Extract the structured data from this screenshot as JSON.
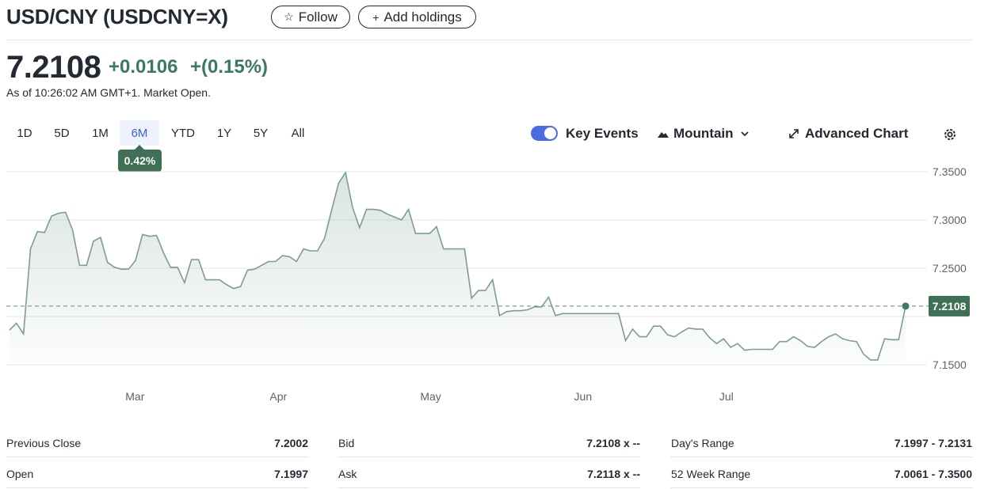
{
  "header": {
    "title": "USD/CNY (USDCNY=X)",
    "follow_label": "Follow",
    "add_holdings_label": "Add holdings"
  },
  "quote": {
    "price": "7.2108",
    "change": "+0.0106",
    "change_percent": "+(0.15%)",
    "as_of": "As of 10:26:02 AM GMT+1. Market Open."
  },
  "ranges": [
    {
      "label": "1D"
    },
    {
      "label": "5D"
    },
    {
      "label": "1M"
    },
    {
      "label": "6M",
      "active": true
    },
    {
      "label": "YTD"
    },
    {
      "label": "1Y"
    },
    {
      "label": "5Y"
    },
    {
      "label": "All"
    }
  ],
  "range_tooltip": "0.42%",
  "toolbar": {
    "key_events_label": "Key Events",
    "key_events_on": true,
    "chart_type_label": "Mountain",
    "advanced_chart_label": "Advanced Chart"
  },
  "colors": {
    "accent_green": "#3c7a5e",
    "line": "#7aa08a",
    "toggle": "#4d6be0",
    "active_range": "#3c5fd6"
  },
  "chart_data": {
    "type": "area",
    "y_ticks": [
      "7.3500",
      "7.3000",
      "7.2500",
      "7.1500"
    ],
    "ylim": [
      7.15,
      7.35
    ],
    "x_ticks": [
      {
        "label": "Mar",
        "x": 0.14
      },
      {
        "label": "Apr",
        "x": 0.3
      },
      {
        "label": "May",
        "x": 0.47
      },
      {
        "label": "Jun",
        "x": 0.64
      },
      {
        "label": "Jul",
        "x": 0.8
      }
    ],
    "x_range": [
      0,
      1
    ],
    "current_value": 7.2108,
    "current_label": "7.2108",
    "grid": true,
    "values": [
      7.186,
      7.193,
      7.182,
      7.27,
      7.288,
      7.287,
      7.304,
      7.307,
      7.308,
      7.29,
      7.253,
      7.253,
      7.278,
      7.282,
      7.256,
      7.251,
      7.249,
      7.249,
      7.258,
      7.285,
      7.283,
      7.284,
      7.266,
      7.251,
      7.251,
      7.235,
      7.259,
      7.259,
      7.238,
      7.238,
      7.238,
      7.233,
      7.229,
      7.231,
      7.248,
      7.249,
      7.253,
      7.257,
      7.257,
      7.263,
      7.262,
      7.257,
      7.27,
      7.268,
      7.268,
      7.281,
      7.31,
      7.338,
      7.349,
      7.313,
      7.292,
      7.311,
      7.311,
      7.31,
      7.306,
      7.303,
      7.3,
      7.311,
      7.286,
      7.286,
      7.286,
      7.293,
      7.27,
      7.27,
      7.27,
      7.27,
      7.219,
      7.227,
      7.227,
      7.238,
      7.201,
      7.205,
      7.206,
      7.206,
      7.207,
      7.21,
      7.21,
      7.22,
      7.201,
      7.203,
      7.203,
      7.203,
      7.203,
      7.203,
      7.203,
      7.203,
      7.203,
      7.203,
      7.175,
      7.187,
      7.179,
      7.179,
      7.19,
      7.19,
      7.181,
      7.179,
      7.184,
      7.188,
      7.187,
      7.187,
      7.178,
      7.172,
      7.177,
      7.168,
      7.172,
      7.165,
      7.166,
      7.166,
      7.166,
      7.166,
      7.174,
      7.174,
      7.179,
      7.175,
      7.169,
      7.168,
      7.174,
      7.179,
      7.182,
      7.177,
      7.175,
      7.174,
      7.161,
      7.155,
      7.155,
      7.177,
      7.176,
      7.176,
      7.211
    ]
  },
  "stats": [
    {
      "label": "Previous Close",
      "value": "7.2002"
    },
    {
      "label": "Bid",
      "value": "7.2108 x --"
    },
    {
      "label": "Day's Range",
      "value": "7.1997 - 7.2131"
    },
    {
      "label": "Open",
      "value": "7.1997"
    },
    {
      "label": "Ask",
      "value": "7.2118 x --"
    },
    {
      "label": "52 Week Range",
      "value": "7.0061 - 7.3500"
    }
  ]
}
